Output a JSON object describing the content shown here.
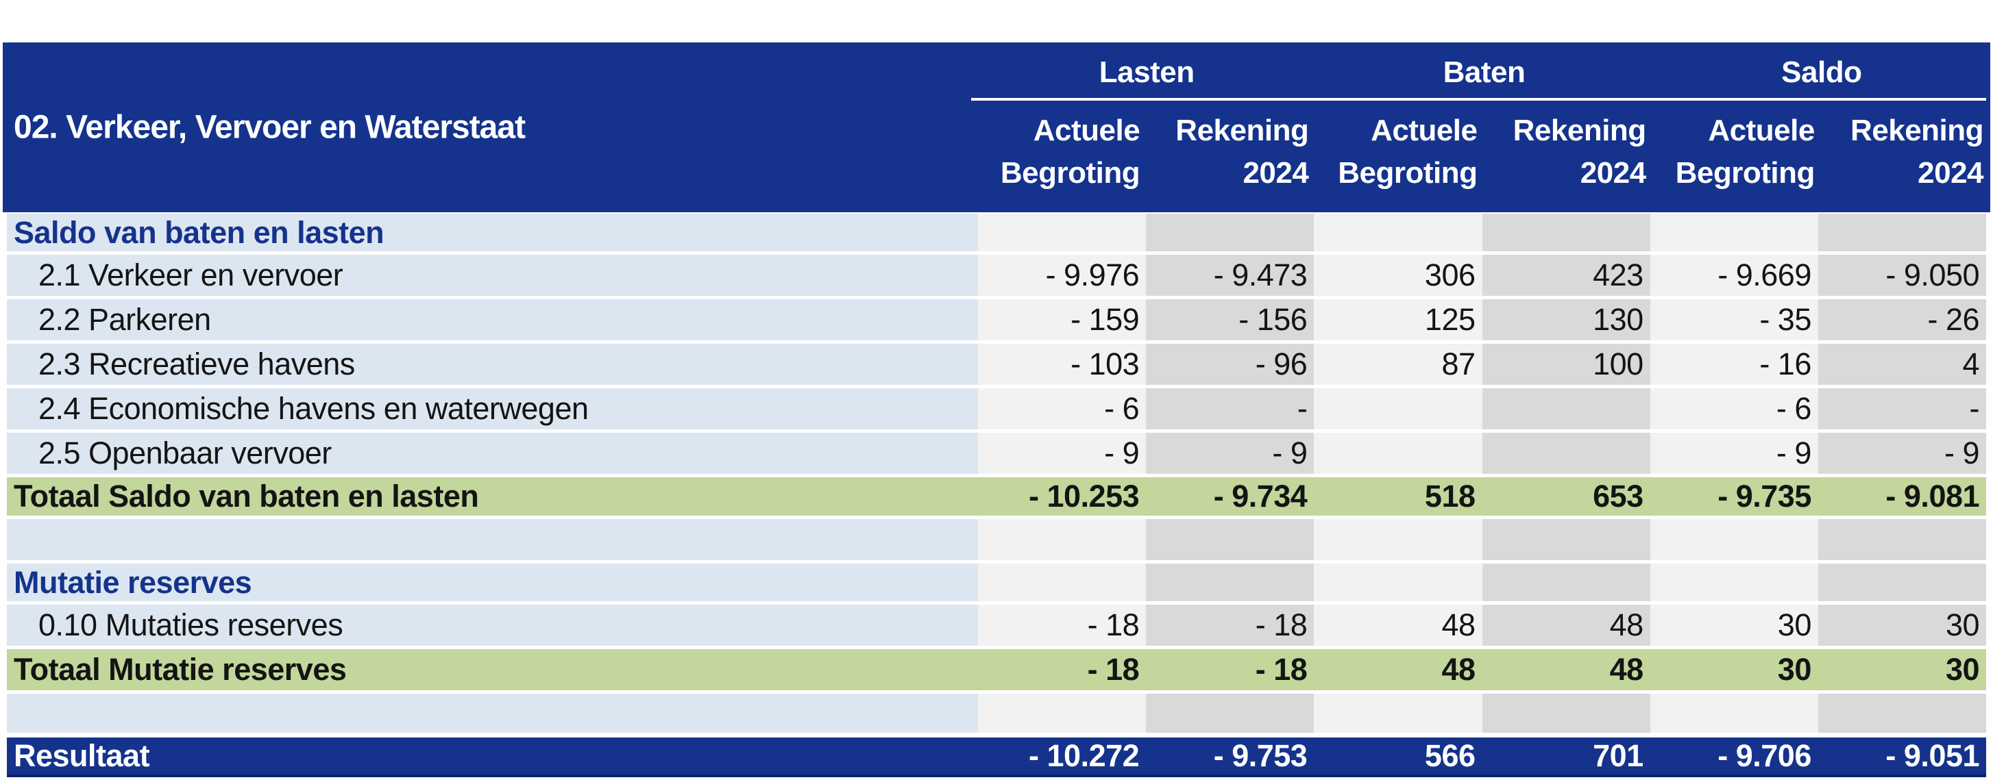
{
  "colors": {
    "navy": "#15338c",
    "navy_dark_border": "#0d2162",
    "label_light_blue": "#dce6f1",
    "column_light_gray": "#f2f2f2",
    "column_dark_gray": "#d9d9d9",
    "total_green": "#c3d69b",
    "header_text": "#ffffff",
    "body_text": "#141414"
  },
  "header": {
    "title": "02. Verkeer, Vervoer en Waterstaat",
    "groups": [
      {
        "label": "Lasten"
      },
      {
        "label": "Baten"
      },
      {
        "label": "Saldo"
      }
    ],
    "columns": [
      {
        "line1": "Actuele",
        "line2": "Begroting"
      },
      {
        "line1": "Rekening",
        "line2": "2024"
      },
      {
        "line1": "Actuele",
        "line2": "Begroting"
      },
      {
        "line1": "Rekening",
        "line2": "2024"
      },
      {
        "line1": "Actuele",
        "line2": "Begroting"
      },
      {
        "line1": "Rekening",
        "line2": "2024"
      }
    ]
  },
  "rows": [
    {
      "type": "section",
      "label": "Saldo van baten en lasten",
      "values": [
        "",
        "",
        "",
        "",
        "",
        ""
      ]
    },
    {
      "type": "data",
      "label": "2.1 Verkeer en vervoer",
      "values": [
        "- 9.976",
        "- 9.473",
        "306",
        "423",
        "- 9.669",
        "- 9.050"
      ]
    },
    {
      "type": "data",
      "label": "2.2 Parkeren",
      "values": [
        "- 159",
        "- 156",
        "125",
        "130",
        "- 35",
        "- 26"
      ]
    },
    {
      "type": "data",
      "label": "2.3 Recreatieve havens",
      "values": [
        "- 103",
        "- 96",
        "87",
        "100",
        "- 16",
        "4"
      ]
    },
    {
      "type": "data",
      "label": "2.4 Economische havens en waterwegen",
      "values": [
        "- 6",
        "-",
        "",
        "",
        "- 6",
        "-"
      ]
    },
    {
      "type": "data",
      "label": "2.5 Openbaar vervoer",
      "values": [
        "- 9",
        "- 9",
        "",
        "",
        "- 9",
        "- 9"
      ]
    },
    {
      "type": "total",
      "label": "Totaal Saldo van baten en lasten",
      "values": [
        "- 10.253",
        "- 9.734",
        "518",
        "653",
        "- 9.735",
        "- 9.081"
      ]
    },
    {
      "type": "empty",
      "label": "",
      "values": [
        "",
        "",
        "",
        "",
        "",
        ""
      ]
    },
    {
      "type": "section",
      "label": "Mutatie reserves",
      "values": [
        "",
        "",
        "",
        "",
        "",
        ""
      ]
    },
    {
      "type": "data",
      "label": "0.10 Mutaties reserves",
      "values": [
        "- 18",
        "- 18",
        "48",
        "48",
        "30",
        "30"
      ]
    },
    {
      "type": "total",
      "label": "Totaal Mutatie reserves",
      "values": [
        "- 18",
        "- 18",
        "48",
        "48",
        "30",
        "30"
      ]
    },
    {
      "type": "empty",
      "label": "",
      "values": [
        "",
        "",
        "",
        "",
        "",
        ""
      ]
    },
    {
      "type": "result",
      "label": "Resultaat",
      "values": [
        "- 10.272",
        "- 9.753",
        "566",
        "701",
        "- 9.706",
        "- 9.051"
      ]
    }
  ]
}
